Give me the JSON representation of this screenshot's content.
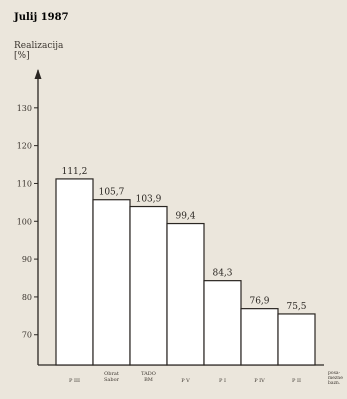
{
  "chart_data": {
    "type": "bar",
    "title": "Julij 1987",
    "ylabel": [
      "Realizacija",
      "[%]"
    ],
    "xlabel": [
      "posa-",
      "mezne",
      "bazn."
    ],
    "categories": [
      [
        "P III"
      ],
      [
        "Obrat",
        "Sabor"
      ],
      [
        "TADO",
        "BM"
      ],
      [
        "P V"
      ],
      [
        "P I"
      ],
      [
        "P IV"
      ],
      [
        "P II"
      ]
    ],
    "values": [
      111.2,
      105.7,
      103.9,
      99.4,
      84.3,
      76.9,
      75.5
    ],
    "value_labels": [
      "111,2",
      "105,7",
      "103,9",
      "99,4",
      "84,3",
      "76,9",
      "75,5"
    ],
    "yticks": [
      70,
      80,
      90,
      100,
      110,
      120,
      130
    ],
    "ylim": [
      62,
      140
    ],
    "grid": false,
    "colors": {
      "bar_fill": "#ffffff",
      "stroke": "#2a2622",
      "background": "#ebe6dc"
    }
  }
}
